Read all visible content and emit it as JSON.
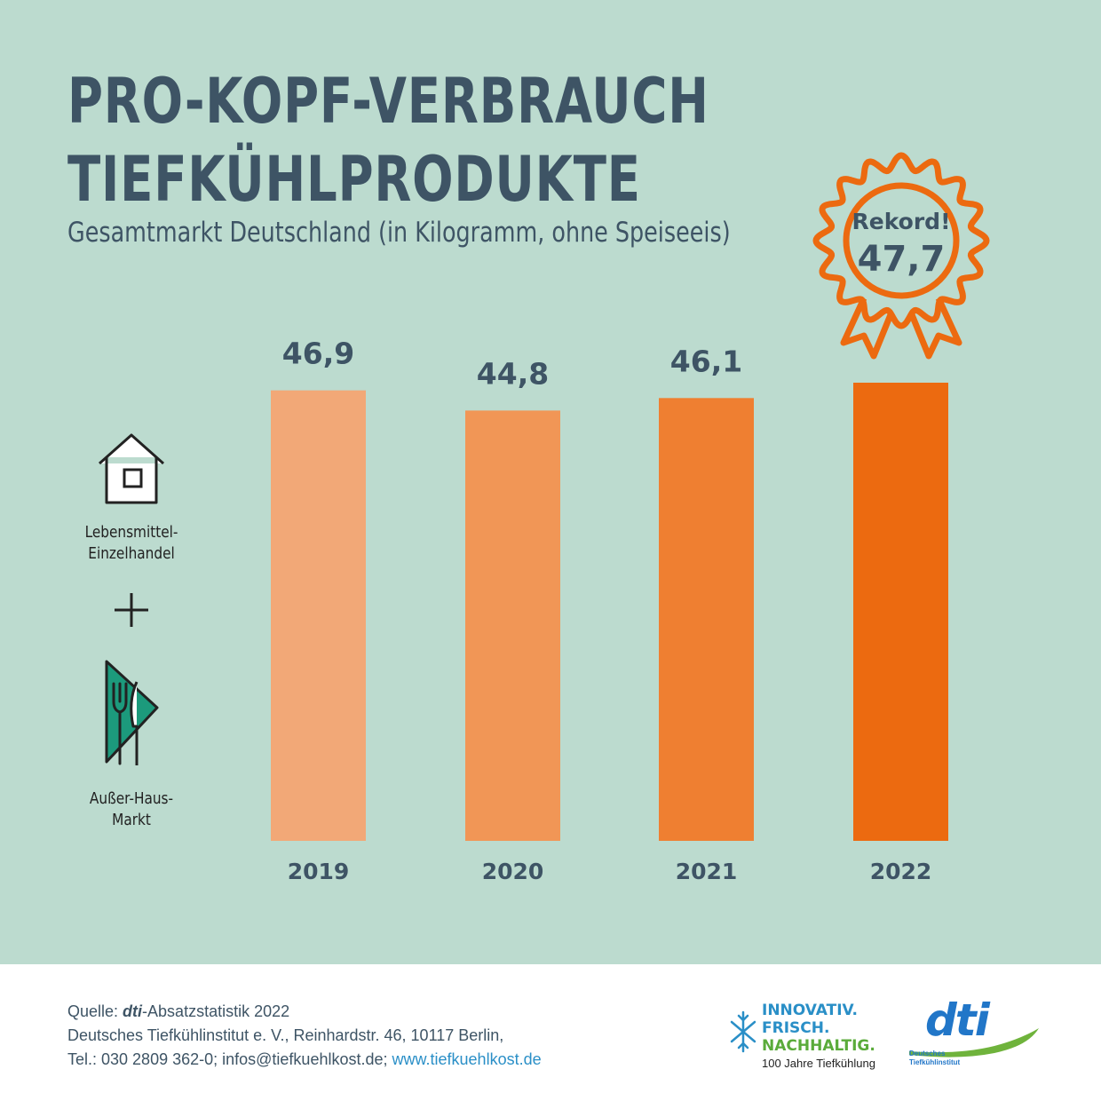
{
  "title_line1": "PRO-KOPF-VERBRAUCH",
  "title_line2": "TIEFKÜHLPRODUKTE",
  "subtitle": "Gesamtmarkt Deutschland (in Kilogramm, ohne Speiseeis)",
  "badge": {
    "label": "Rekord!",
    "value": "47,7",
    "color": "#ec6a10"
  },
  "legend": {
    "retail_line1": "Lebensmittel-",
    "retail_line2": "Einzelhandel",
    "plus": "+",
    "ooh_line1": "Außer-Haus-",
    "ooh_line2": "Markt",
    "house_icon": "house-icon",
    "cutlery_icon": "napkin-cutlery-icon"
  },
  "chart_data": {
    "type": "bar",
    "title": "PRO-KOPF-VERBRAUCH TIEFKÜHLPRODUKTE",
    "subtitle": "Gesamtmarkt Deutschland (in Kilogramm, ohne Speiseeis)",
    "unit": "kg",
    "categories": [
      "2019",
      "2020",
      "2021",
      "2022"
    ],
    "values": [
      46.9,
      44.8,
      46.1,
      47.7
    ],
    "labels": [
      "46,9",
      "44,8",
      "46,1",
      "47,7"
    ],
    "colors": [
      "#f2a877",
      "#f19656",
      "#ef7f31",
      "#ec6a10"
    ],
    "highlight": {
      "category": "2022",
      "label": "Rekord!"
    },
    "xlabel": "",
    "ylabel": "",
    "grid": false
  },
  "footer": {
    "source_prefix": "Quelle: ",
    "source_em": "dti",
    "source_suffix": "-Absatzstatistik 2022",
    "address": "Deutsches Tiefkühlinstitut e. V., Reinhardstr. 46, 10117 Berlin,",
    "contact": "Tel.: 030 2809 362-0; infos@tiefkuehlkost.de; ",
    "website": "www.tiefkuehlkost.de"
  },
  "logos": {
    "innov_line1": "INNOVATIV.",
    "innov_line2": "FRISCH.",
    "innov_line3": "NACHHALTIG.",
    "innov_sub": "100 Jahre Tiefkühlung",
    "innov_color1": "#2a8fc7",
    "innov_color2": "#5aab3a",
    "dti_word": "dti",
    "dti_sub1": "Deutsches",
    "dti_sub2": "Tiefkühlinstitut"
  }
}
